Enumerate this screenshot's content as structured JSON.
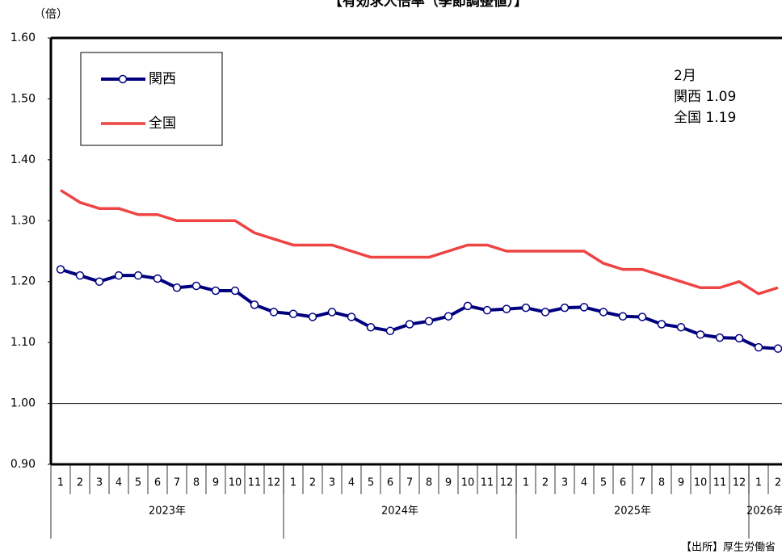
{
  "chart_data": {
    "type": "line",
    "title": "【有効求人倍率（季節調整値）】",
    "y_unit": "（倍）",
    "categories": [
      "1",
      "2",
      "3",
      "4",
      "5",
      "6",
      "7",
      "8",
      "9",
      "10",
      "11",
      "12",
      "1",
      "2",
      "3",
      "4",
      "5",
      "6",
      "7",
      "8",
      "9",
      "10",
      "11",
      "12",
      "1",
      "2",
      "3",
      "4",
      "5",
      "6",
      "7",
      "8",
      "9",
      "10",
      "11",
      "12",
      "1",
      "2"
    ],
    "years": [
      "2023年",
      "2024年",
      "2025年",
      "2026年"
    ],
    "series": [
      {
        "name": "関西",
        "color": "#00007f",
        "marker": "circle",
        "values": [
          1.22,
          1.21,
          1.2,
          1.21,
          1.21,
          1.205,
          1.19,
          1.193,
          1.185,
          1.185,
          1.162,
          1.15,
          1.147,
          1.142,
          1.15,
          1.142,
          1.125,
          1.119,
          1.13,
          1.135,
          1.143,
          1.16,
          1.153,
          1.155,
          1.157,
          1.15,
          1.157,
          1.158,
          1.15,
          1.143,
          1.142,
          1.13,
          1.125,
          1.113,
          1.108,
          1.107,
          1.092,
          1.09
        ]
      },
      {
        "name": "全国",
        "color": "#ee4444",
        "values": [
          1.35,
          1.33,
          1.32,
          1.32,
          1.31,
          1.31,
          1.3,
          1.3,
          1.3,
          1.3,
          1.28,
          1.27,
          1.26,
          1.26,
          1.26,
          1.25,
          1.24,
          1.24,
          1.24,
          1.24,
          1.25,
          1.26,
          1.26,
          1.25,
          1.25,
          1.25,
          1.25,
          1.25,
          1.23,
          1.22,
          1.22,
          1.21,
          1.2,
          1.19,
          1.19,
          1.2,
          1.18,
          1.19
        ]
      }
    ],
    "ylim": [
      0.9,
      1.6
    ],
    "yticks": [
      {
        "value": 0.9,
        "label": "0.90"
      },
      {
        "value": 1.0,
        "label": "1.00"
      },
      {
        "value": 1.1,
        "label": "1.10"
      },
      {
        "value": 1.2,
        "label": "1.20"
      },
      {
        "value": 1.3,
        "label": "1.30"
      },
      {
        "value": 1.4,
        "label": "1.40"
      },
      {
        "value": 1.5,
        "label": "1.50"
      },
      {
        "value": 1.6,
        "label": "1.60"
      }
    ],
    "reference_line": 1.0,
    "annotations": [
      "2月",
      "関西 1.09",
      "全国 1.19"
    ],
    "source": "【出所】厚生労働省"
  }
}
